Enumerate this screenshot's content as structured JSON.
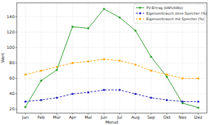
{
  "chart_data": {
    "type": "line",
    "x_label": "Monat",
    "y_label": "Wert",
    "categories": [
      "Jan",
      "Feb",
      "Mär",
      "Apr",
      "Mai",
      "Jun",
      "Jul",
      "Aug",
      "Sep",
      "Okt",
      "Nov",
      "Dez"
    ],
    "series": [
      {
        "name": "PV-Ertrag (kWh/kWp)",
        "color": "#2ca02c",
        "marker": "circle",
        "line_style": "solid",
        "values": [
          23,
          57,
          71,
          127,
          125,
          150,
          139,
          122,
          88,
          62,
          28,
          22
        ]
      },
      {
        "name": "Eigenverbrauch ohne Speicher (%)",
        "color": "#1f1fbf",
        "marker": "circle",
        "line_style": "dashed",
        "values": [
          30,
          32,
          35,
          40,
          42,
          45,
          45,
          40,
          35,
          32,
          30,
          30
        ]
      },
      {
        "name": "Eigenverbrauch mit Speicher (%)",
        "color": "#ffa500",
        "marker": "circle",
        "line_style": "dashed",
        "values": [
          65,
          70,
          75,
          80,
          82,
          85,
          83,
          78,
          70,
          65,
          60,
          60
        ]
      }
    ],
    "ylim": [
      15,
      158
    ],
    "yticks": [
      20,
      40,
      60,
      80,
      100,
      120,
      140
    ],
    "grid": true,
    "legend": "upper right"
  }
}
